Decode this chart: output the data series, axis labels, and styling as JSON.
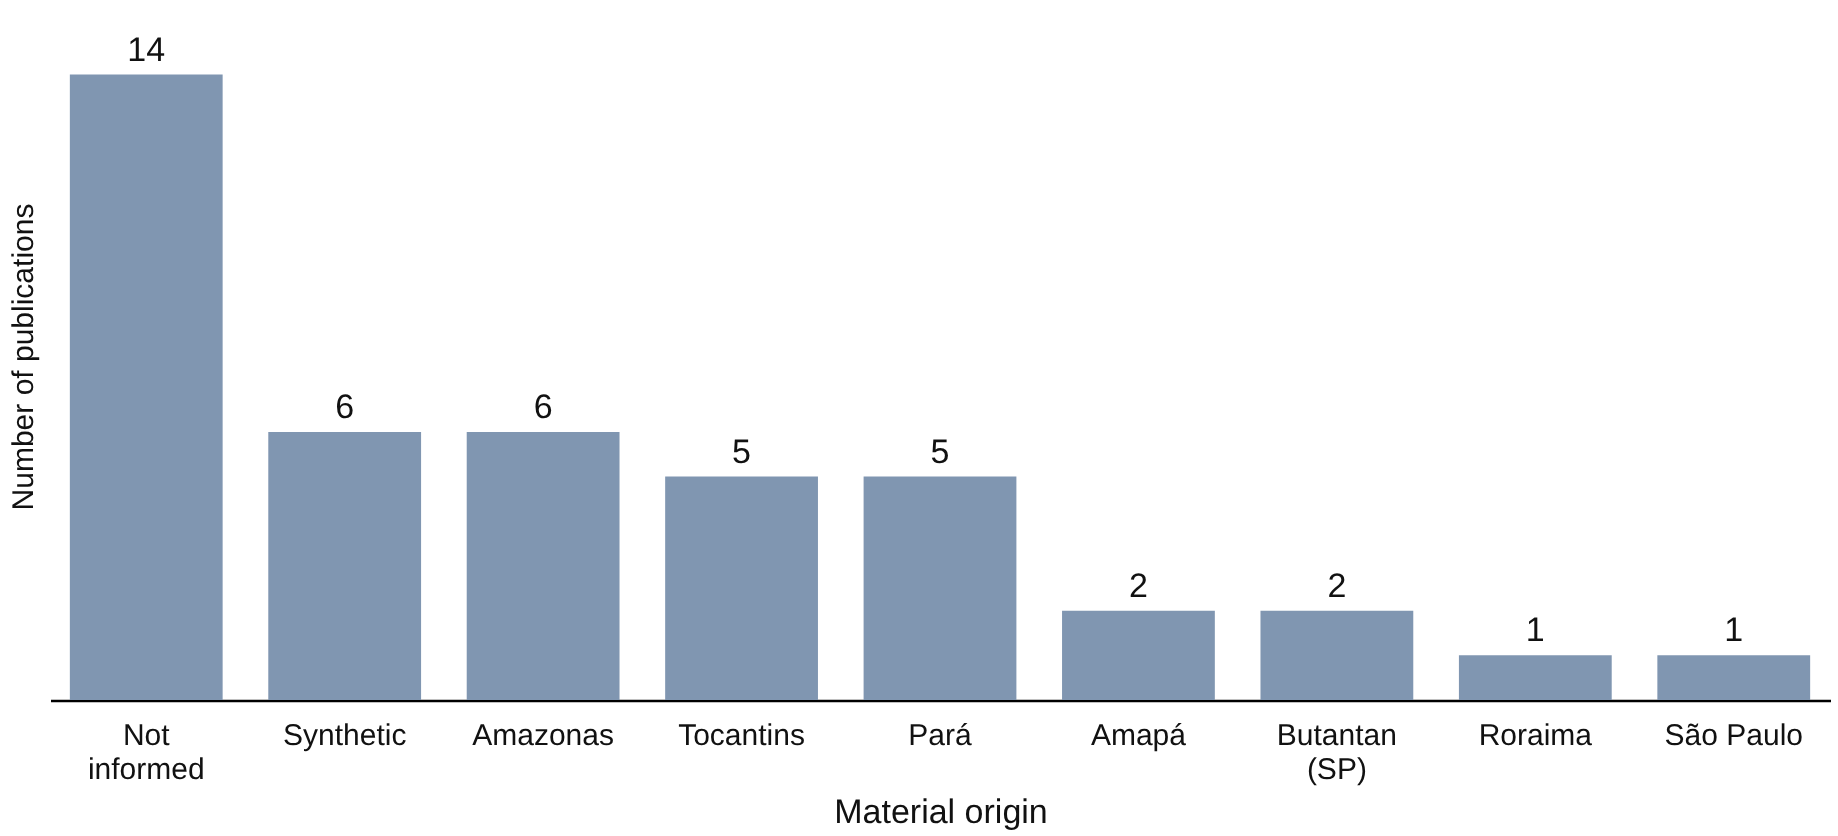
{
  "chart_data": {
    "type": "bar",
    "xlabel": "Material origin",
    "ylabel": "Number of publications",
    "categories": [
      "Not informed",
      "Synthetic",
      "Amazonas",
      "Tocantins",
      "Pará",
      "Amapá",
      "Butantan (SP)",
      "Roraima",
      "São Paulo"
    ],
    "values": [
      14,
      6,
      6,
      5,
      5,
      2,
      2,
      1,
      1
    ],
    "color": "#8096b1",
    "data_labels": true,
    "tick_labels": "x"
  }
}
